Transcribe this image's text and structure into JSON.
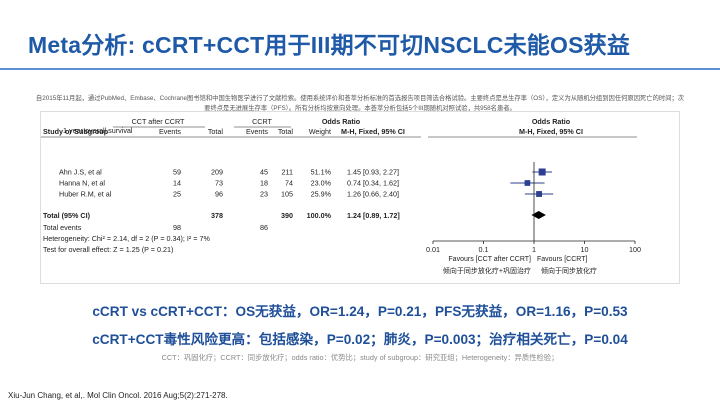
{
  "slide": {
    "title": "Meta分析: cCRT+CCT用于III期不可切NSCLC未能OS获益",
    "intro": "自2015年11月起，通过PubMed、Embase、Cochrane图书馆和中国生物医学进行了文献检索。使用系统评价和荟萃分析标准的首选报告项目筛选合格试验。主要终点是总生存率（OS），定义为从随机分组到因任何原因死亡的时间；次要终点是无进展生存率（PFS）。所有分析均按意向处理。本荟萃分析包括5个III期随机对照试验，共958名患者。",
    "summary_line1": "cCRT vs cCRT+CCT：OS无获益，OR=1.24，P=0.21，PFS无获益，OR=1.16，P=0.53",
    "summary_line2": "cCRT+CCT毒性风险更高：包括感染，P=0.02；肺炎，P=0.003；治疗相关死亡，P=0.04",
    "abbreviations": "CCT：巩固化疗；CCRT：同步放化疗；odds ratio：优势比；study of subgroup：研究亚组；Heterogeneity：异质性检验；",
    "citation": "Xiu-Jun Chang, et al,. Mol Clin Oncol. 2016 Aug;5(2):271-278."
  },
  "forest": {
    "group1_header": "CCT after CCRT",
    "group2_header": "CCRT",
    "or_header": "Odds Ratio",
    "or_subheader": "M-H, Fixed, 95% CI",
    "col_study": "Study or Subgroup",
    "col_events": "Events",
    "col_total": "Total",
    "col_weight": "Weight",
    "subgroup_label": "1 year overall survival",
    "total_label": "Total (95% CI)",
    "total_g1": "378",
    "total_g2": "390",
    "total_weight": "100.0%",
    "total_or": "1.24 [0.89, 1.72]",
    "total_events_label": "Total events",
    "total_events_g1": "98",
    "total_events_g2": "86",
    "heterogeneity": "Heterogeneity: Chi² = 2.14, df = 2 (P = 0.34); I² = 7%",
    "overall_effect": "Test for overall effect: Z = 1.25 (P = 0.21)",
    "favours_left": "Favours [CCT after CCRT]",
    "favours_right": "Favours [CCRT]",
    "note_left": "倾向于同步放化疗+巩固治疗",
    "note_right": "倾向于同步放化疗",
    "axis_tick_labels": [
      "0.01",
      "0.1",
      "1",
      "10",
      "100"
    ]
  },
  "chart_data": {
    "type": "forest",
    "measure": "Odds Ratio (M-H, Fixed, 95% CI)",
    "x_scale": "log",
    "xlim": [
      0.01,
      100
    ],
    "x_ticks": [
      0.01,
      0.1,
      1,
      10,
      100
    ],
    "reference_line": 1,
    "studies": [
      {
        "study": "Ahn J.S, et al",
        "events_g1": 59,
        "total_g1": 209,
        "events_g2": 45,
        "total_g2": 211,
        "weight": "51.1%",
        "or": 1.45,
        "ci": [
          0.93,
          2.27
        ],
        "or_text": "1.45 [0.93, 2.27]"
      },
      {
        "study": "Hanna N, et al",
        "events_g1": 14,
        "total_g1": 73,
        "events_g2": 18,
        "total_g2": 74,
        "weight": "23.0%",
        "or": 0.74,
        "ci": [
          0.34,
          1.62
        ],
        "or_text": "0.74 [0.34, 1.62]"
      },
      {
        "study": "Huber R.M, et al",
        "events_g1": 25,
        "total_g1": 96,
        "events_g2": 23,
        "total_g2": 105,
        "weight": "25.9%",
        "or": 1.26,
        "ci": [
          0.66,
          2.4
        ],
        "or_text": "1.26 [0.66, 2.40]"
      }
    ],
    "pooled": {
      "or": 1.24,
      "ci": [
        0.89,
        1.72
      ]
    },
    "colors": {
      "marker": "#2d3f8f",
      "diamond": "#000000"
    }
  }
}
